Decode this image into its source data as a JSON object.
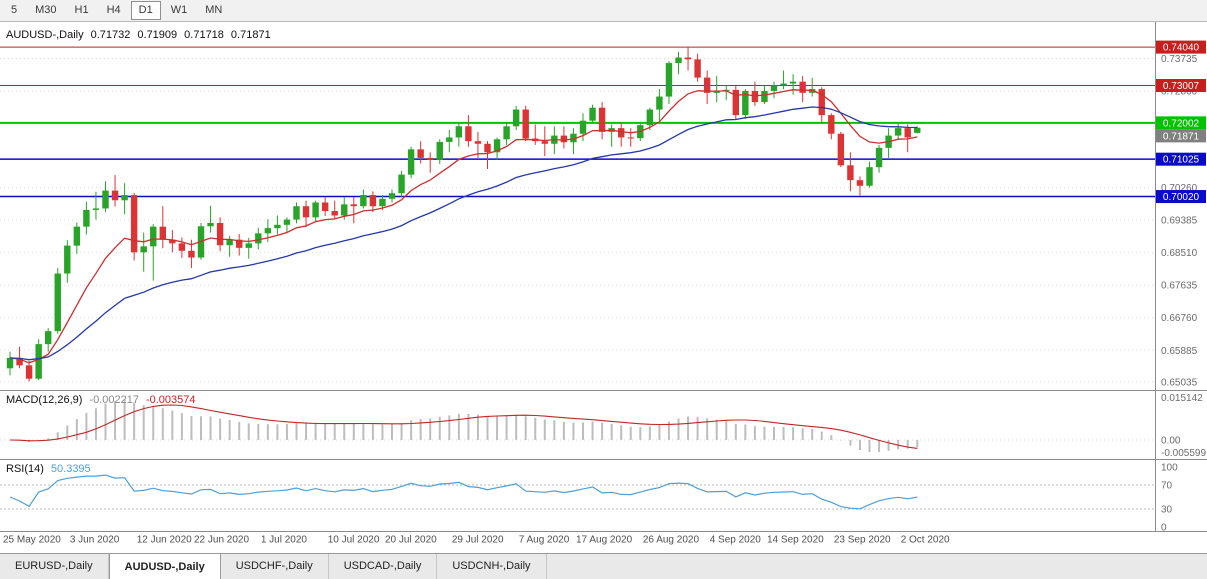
{
  "toolbar": {
    "timeframes": [
      {
        "label": "5",
        "active": false
      },
      {
        "label": "M30",
        "active": false
      },
      {
        "label": "H1",
        "active": false
      },
      {
        "label": "H4",
        "active": false
      },
      {
        "label": "D1",
        "active": true
      },
      {
        "label": "W1",
        "active": false
      },
      {
        "label": "MN",
        "active": false
      }
    ]
  },
  "colors": {
    "up": "#28a428",
    "down": "#dc3434",
    "grid": "#dadada",
    "axis_text": "#6b6b6b",
    "date_text": "#4f4f4f",
    "separator": "#8c8c8c",
    "ma_fast": "#cf2e2e",
    "ma_slow": "#2438a8",
    "level_red": "#c81e1e",
    "level_green": "#00c300",
    "level_blue": "#0a0acc",
    "bid_box": "#808080",
    "macd_hist": "#bdbdbd",
    "macd_signal": "#c22626",
    "rsi_line": "#4f9fd8"
  },
  "chart_data": {
    "type": "candlestick",
    "title": "AUDUSD-,Daily",
    "open": "0.71732",
    "high": "0.71909",
    "low": "0.71718",
    "close": "0.71871",
    "price_axis": {
      "min": 0.6487,
      "max": 0.745,
      "ticks": [
        {
          "price": 0.73735,
          "label": "0.73735"
        },
        {
          "price": 0.7286,
          "label": "0.72860"
        },
        {
          "price": 0.7026,
          "label": "0.70260"
        },
        {
          "price": 0.69385,
          "label": "0.69385"
        },
        {
          "price": 0.6851,
          "label": "0.68510"
        },
        {
          "price": 0.67635,
          "label": "0.67635"
        },
        {
          "price": 0.6676,
          "label": "0.66760"
        },
        {
          "price": 0.65885,
          "label": "0.65885"
        },
        {
          "price": 0.65035,
          "label": "0.65035"
        }
      ]
    },
    "levels": [
      {
        "price": 0.7404,
        "label": "0.74040",
        "color": "#c81e1e",
        "width": 1
      },
      {
        "price": 0.73007,
        "label": "0.73007",
        "color": "#c81e1e",
        "width": 1
      },
      {
        "price": 0.72002,
        "label": "0.72002",
        "color": "#00c300",
        "width": 2
      },
      {
        "price": 0.71025,
        "label": "0.71025",
        "color": "#0a0acc",
        "width": 1.5
      },
      {
        "price": 0.7002,
        "label": "0.70020",
        "color": "#0a0acc",
        "width": 1.5
      }
    ],
    "bid": {
      "price": 0.71871,
      "label": "0.71871",
      "color": "#808080"
    },
    "moving_averages": [
      {
        "period": 10,
        "color": "#cf2e2e",
        "name": "ma-fast-line"
      },
      {
        "period": 30,
        "color": "#2438a8",
        "name": "ma-slow-line"
      }
    ],
    "candles": [
      [
        0.654,
        0.6585,
        0.6521,
        0.6568
      ],
      [
        0.6568,
        0.6598,
        0.654,
        0.6548
      ],
      [
        0.6548,
        0.656,
        0.6505,
        0.6512
      ],
      [
        0.6512,
        0.6618,
        0.6508,
        0.6605
      ],
      [
        0.6605,
        0.6648,
        0.6585,
        0.664
      ],
      [
        0.664,
        0.681,
        0.6633,
        0.6795
      ],
      [
        0.6795,
        0.6885,
        0.677,
        0.687
      ],
      [
        0.687,
        0.6932,
        0.6848,
        0.6921
      ],
      [
        0.6921,
        0.6988,
        0.69,
        0.6966
      ],
      [
        0.6966,
        0.7015,
        0.694,
        0.697
      ],
      [
        0.697,
        0.7043,
        0.696,
        0.7018
      ],
      [
        0.7018,
        0.706,
        0.6975,
        0.6992
      ],
      [
        0.6992,
        0.7038,
        0.6955,
        0.7006
      ],
      [
        0.7006,
        0.7012,
        0.683,
        0.6852
      ],
      [
        0.6852,
        0.6905,
        0.68,
        0.6868
      ],
      [
        0.6868,
        0.6928,
        0.6776,
        0.6921
      ],
      [
        0.6921,
        0.6976,
        0.6863,
        0.6886
      ],
      [
        0.6886,
        0.6912,
        0.6852,
        0.6876
      ],
      [
        0.6876,
        0.6892,
        0.6837,
        0.6856
      ],
      [
        0.6856,
        0.6886,
        0.681,
        0.6838
      ],
      [
        0.6838,
        0.6931,
        0.6832,
        0.6922
      ],
      [
        0.6922,
        0.6977,
        0.6905,
        0.6931
      ],
      [
        0.6931,
        0.6946,
        0.6855,
        0.6871
      ],
      [
        0.6871,
        0.6896,
        0.684,
        0.6886
      ],
      [
        0.6886,
        0.6901,
        0.6843,
        0.6864
      ],
      [
        0.6864,
        0.6891,
        0.6835,
        0.6876
      ],
      [
        0.6876,
        0.6918,
        0.686,
        0.6903
      ],
      [
        0.6903,
        0.6941,
        0.688,
        0.6917
      ],
      [
        0.6917,
        0.6951,
        0.69,
        0.6926
      ],
      [
        0.6926,
        0.6946,
        0.6905,
        0.694
      ],
      [
        0.694,
        0.6986,
        0.693,
        0.6976
      ],
      [
        0.6976,
        0.6991,
        0.692,
        0.6946
      ],
      [
        0.6946,
        0.6991,
        0.6935,
        0.6986
      ],
      [
        0.6986,
        0.7001,
        0.695,
        0.6963
      ],
      [
        0.6963,
        0.6991,
        0.694,
        0.6951
      ],
      [
        0.6951,
        0.7001,
        0.694,
        0.6981
      ],
      [
        0.6981,
        0.7001,
        0.693,
        0.6976
      ],
      [
        0.6976,
        0.7021,
        0.697,
        0.7006
      ],
      [
        0.7006,
        0.7016,
        0.696,
        0.6976
      ],
      [
        0.6976,
        0.7006,
        0.6965,
        0.6996
      ],
      [
        0.6996,
        0.7021,
        0.6986,
        0.7011
      ],
      [
        0.7011,
        0.7071,
        0.7001,
        0.7061
      ],
      [
        0.7061,
        0.7136,
        0.7051,
        0.7129
      ],
      [
        0.7129,
        0.7151,
        0.7091,
        0.7106
      ],
      [
        0.7106,
        0.7121,
        0.7066,
        0.7101
      ],
      [
        0.7101,
        0.7156,
        0.7089,
        0.7149
      ],
      [
        0.7149,
        0.7181,
        0.7121,
        0.7161
      ],
      [
        0.7161,
        0.7199,
        0.7136,
        0.7191
      ],
      [
        0.7191,
        0.7221,
        0.7136,
        0.7151
      ],
      [
        0.7151,
        0.7176,
        0.7106,
        0.7144
      ],
      [
        0.7144,
        0.7151,
        0.7076,
        0.7121
      ],
      [
        0.7121,
        0.7161,
        0.7101,
        0.7156
      ],
      [
        0.7156,
        0.7201,
        0.7141,
        0.7191
      ],
      [
        0.7191,
        0.7246,
        0.7181,
        0.7236
      ],
      [
        0.7236,
        0.7246,
        0.7151,
        0.7158
      ],
      [
        0.7158,
        0.7196,
        0.7141,
        0.7151
      ],
      [
        0.7151,
        0.7191,
        0.7111,
        0.7144
      ],
      [
        0.7144,
        0.7191,
        0.7116,
        0.7166
      ],
      [
        0.7166,
        0.7191,
        0.7131,
        0.7148
      ],
      [
        0.7148,
        0.7186,
        0.7116,
        0.7171
      ],
      [
        0.7171,
        0.7226,
        0.7151,
        0.7206
      ],
      [
        0.7206,
        0.7249,
        0.7201,
        0.7241
      ],
      [
        0.7241,
        0.7256,
        0.7156,
        0.7176
      ],
      [
        0.7176,
        0.7196,
        0.7136,
        0.7186
      ],
      [
        0.7186,
        0.7201,
        0.7136,
        0.7161
      ],
      [
        0.7161,
        0.7186,
        0.7136,
        0.7159
      ],
      [
        0.7159,
        0.7201,
        0.7151,
        0.7194
      ],
      [
        0.7194,
        0.7241,
        0.7181,
        0.7236
      ],
      [
        0.7236,
        0.7291,
        0.7206,
        0.7271
      ],
      [
        0.7271,
        0.7366,
        0.7251,
        0.7361
      ],
      [
        0.7361,
        0.7391,
        0.7331,
        0.7376
      ],
      [
        0.7376,
        0.7404,
        0.7341,
        0.7371
      ],
      [
        0.7371,
        0.7386,
        0.7311,
        0.7322
      ],
      [
        0.7322,
        0.7341,
        0.7251,
        0.7281
      ],
      [
        0.7281,
        0.7326,
        0.7256,
        0.7286
      ],
      [
        0.7286,
        0.7301,
        0.7261,
        0.7289
      ],
      [
        0.7289,
        0.7301,
        0.7211,
        0.7221
      ],
      [
        0.7221,
        0.7291,
        0.7211,
        0.7286
      ],
      [
        0.7286,
        0.7311,
        0.7246,
        0.7256
      ],
      [
        0.7256,
        0.7301,
        0.7251,
        0.7286
      ],
      [
        0.7286,
        0.7311,
        0.7266,
        0.7301
      ],
      [
        0.7301,
        0.7341,
        0.7291,
        0.7306
      ],
      [
        0.7306,
        0.7331,
        0.7276,
        0.7311
      ],
      [
        0.7311,
        0.7326,
        0.7256,
        0.7281
      ],
      [
        0.7281,
        0.7321,
        0.7271,
        0.7291
      ],
      [
        0.7291,
        0.7296,
        0.7201,
        0.7221
      ],
      [
        0.7221,
        0.7226,
        0.7156,
        0.7171
      ],
      [
        0.7171,
        0.7176,
        0.7081,
        0.7086
      ],
      [
        0.7086,
        0.7121,
        0.7016,
        0.7046
      ],
      [
        0.7046,
        0.7056,
        0.7005,
        0.7031
      ],
      [
        0.7031,
        0.7096,
        0.7026,
        0.7081
      ],
      [
        0.7081,
        0.7141,
        0.7066,
        0.7133
      ],
      [
        0.7133,
        0.7186,
        0.7106,
        0.7166
      ],
      [
        0.7166,
        0.7201,
        0.7156,
        0.7186
      ],
      [
        0.7186,
        0.7196,
        0.7121,
        0.7161
      ],
      [
        0.71732,
        0.71909,
        0.71718,
        0.71871
      ]
    ],
    "date_labels": [
      {
        "bar": 0,
        "text": "25 May 2020"
      },
      {
        "bar": 7,
        "text": "3 Jun 2020"
      },
      {
        "bar": 14,
        "text": "12 Jun 2020"
      },
      {
        "bar": 20,
        "text": "22 Jun 2020"
      },
      {
        "bar": 27,
        "text": "1 Jul 2020"
      },
      {
        "bar": 34,
        "text": "10 Jul 2020"
      },
      {
        "bar": 40,
        "text": "20 Jul 2020"
      },
      {
        "bar": 47,
        "text": "29 Jul 2020"
      },
      {
        "bar": 54,
        "text": "7 Aug 2020"
      },
      {
        "bar": 60,
        "text": "17 Aug 2020"
      },
      {
        "bar": 67,
        "text": "26 Aug 2020"
      },
      {
        "bar": 74,
        "text": "4 Sep 2020"
      },
      {
        "bar": 80,
        "text": "14 Sep 2020"
      },
      {
        "bar": 87,
        "text": "23 Sep 2020"
      },
      {
        "bar": 94,
        "text": "2 Oct 2020"
      }
    ],
    "macd": {
      "label": "MACD(12,26,9)",
      "main_value": "-0.002217",
      "signal_value": "-0.003574",
      "fast": 12,
      "slow": 26,
      "signal": 9,
      "axis_top": "0.015142",
      "axis_zero": "0.00",
      "axis_bottom": "-0.005599"
    },
    "rsi": {
      "label": "RSI(14)",
      "value": "50.3395",
      "period": 14,
      "levels": [
        70,
        30
      ],
      "axis_top": "100",
      "axis_upper": "70",
      "axis_lower": "30",
      "axis_bottom": "0"
    }
  },
  "tabs": [
    {
      "label": "EURUSD-,Daily",
      "active": false
    },
    {
      "label": "AUDUSD-,Daily",
      "active": true
    },
    {
      "label": "USDCHF-,Daily",
      "active": false
    },
    {
      "label": "USDCAD-,Daily",
      "active": false
    },
    {
      "label": "USDCNH-,Daily",
      "active": false
    }
  ]
}
